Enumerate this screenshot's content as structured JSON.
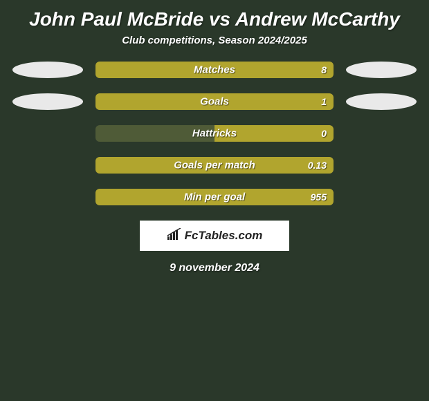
{
  "background_color": "#2a382a",
  "title": "John Paul McBride vs Andrew McCarthy",
  "title_fontsize": 28,
  "subtitle": "Club competitions, Season 2024/2025",
  "subtitle_fontsize": 15,
  "bar_colors": {
    "left": "#4f5b37",
    "right": "#b1a52e"
  },
  "ellipse_color": "#e9e9e9",
  "text_color": "#ffffff",
  "rows": [
    {
      "label": "Matches",
      "left_val": "",
      "right_val": "8",
      "left_pct": 0,
      "right_pct": 100,
      "show_ellipse": true,
      "show_left_val": false
    },
    {
      "label": "Goals",
      "left_val": "",
      "right_val": "1",
      "left_pct": 0,
      "right_pct": 100,
      "show_ellipse": true,
      "show_left_val": false
    },
    {
      "label": "Hattricks",
      "left_val": "",
      "right_val": "0",
      "left_pct": 50,
      "right_pct": 50,
      "show_ellipse": false,
      "show_left_val": false
    },
    {
      "label": "Goals per match",
      "left_val": "",
      "right_val": "0.13",
      "left_pct": 0,
      "right_pct": 100,
      "show_ellipse": false,
      "show_left_val": false
    },
    {
      "label": "Min per goal",
      "left_val": "",
      "right_val": "955",
      "left_pct": 0,
      "right_pct": 100,
      "show_ellipse": false,
      "show_left_val": false
    }
  ],
  "brand": "FcTables.com",
  "date_text": "9 november 2024"
}
